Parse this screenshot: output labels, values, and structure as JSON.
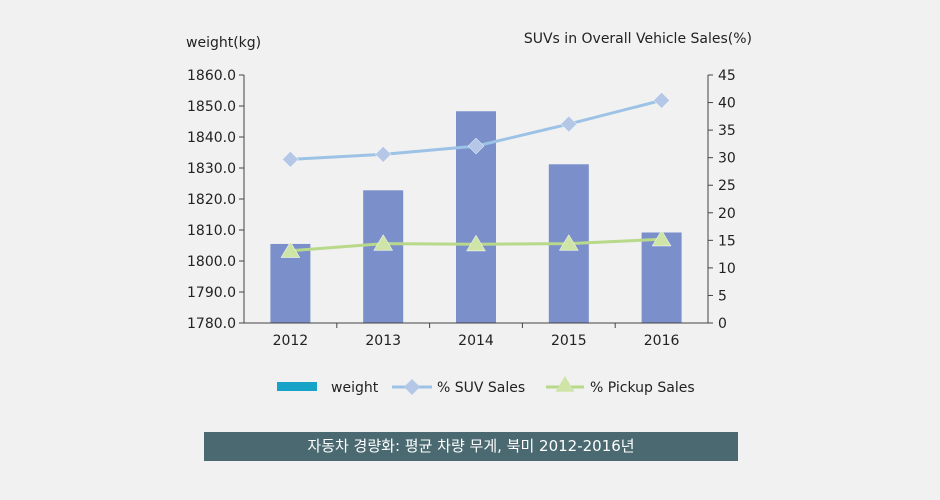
{
  "chart_data": {
    "type": "bar+line",
    "caption": "자동차 경량화: 평균 차량 무게, 북미 2012-2016년",
    "categories": [
      "2012",
      "2013",
      "2014",
      "2015",
      "2016"
    ],
    "left_axis": {
      "label": "weight(kg)",
      "min": 1780,
      "max": 1860,
      "step": 10,
      "ticks": [
        "1780.0",
        "1790.0",
        "1800.0",
        "1810.0",
        "1820.0",
        "1830.0",
        "1840.0",
        "1850.0",
        "1860.0"
      ]
    },
    "right_axis": {
      "label": "SUVs in Overall Vehicle Sales(%)",
      "min": 0,
      "max": 45,
      "step": 5,
      "ticks": [
        "0",
        "5",
        "10",
        "15",
        "20",
        "25",
        "30",
        "35",
        "40",
        "45"
      ]
    },
    "series": [
      {
        "name": "weight",
        "kind": "bar",
        "axis": "left",
        "color": "#7b8fcb",
        "legend_color": "#17a2c8",
        "values": [
          1805.5,
          1822.8,
          1848.3,
          1831.2,
          1809.2
        ]
      },
      {
        "name": "% SUV Sales",
        "kind": "line",
        "axis": "right",
        "marker": "diamond",
        "color": "#9cc3e6",
        "marker_color": "#b4c7e7",
        "values": [
          29.7,
          30.6,
          32.1,
          36.1,
          40.4
        ]
      },
      {
        "name": "% Pickup Sales",
        "kind": "line",
        "axis": "right",
        "marker": "triangle",
        "color": "#b8d98a",
        "marker_color": "#cfe5a8",
        "values": [
          13.1,
          14.4,
          14.3,
          14.4,
          15.2
        ]
      }
    ],
    "legend_position": "bottom"
  }
}
